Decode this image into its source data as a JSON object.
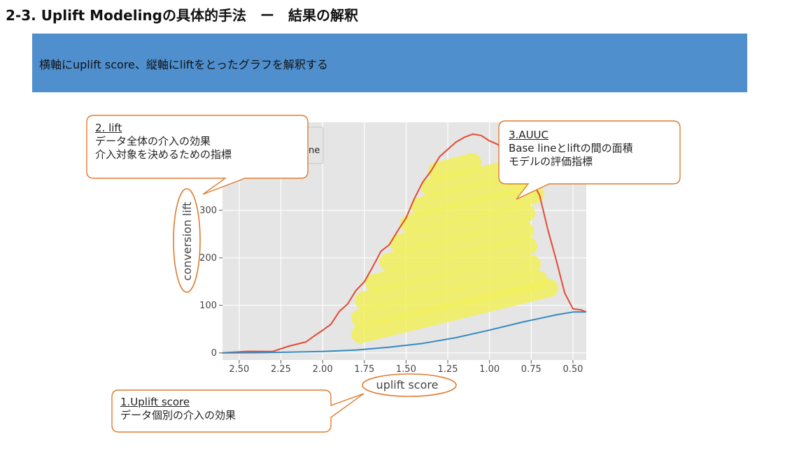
{
  "slide": {
    "title": "2-3. Uplift Modelingの具体的手法　ー　結果の解釈",
    "banner_text": "横軸にuplift score、縦軸にliftをとったグラフを解釈する",
    "banner_color": "#4f8fce"
  },
  "callouts": [
    {
      "id": "uplift-score",
      "head": "1.Uplift score",
      "lines": [
        "データ個別の介入の効果"
      ]
    },
    {
      "id": "lift",
      "head": "2. lift",
      "lines": [
        "データ全体の介入の効果",
        "介入対象を決めるための指標"
      ]
    },
    {
      "id": "auuc",
      "head": "3.AUUC",
      "lines": [
        "Base lineとliftの間の面積",
        "モデルの評価指標"
      ]
    }
  ],
  "legend_fragment": "ne",
  "chart_data": {
    "type": "line",
    "xlabel": "uplift score",
    "ylabel": "conversion lift",
    "xlim": [
      2.6,
      0.42
    ],
    "ylim": [
      -15,
      485
    ],
    "x_reversed": true,
    "grid": true,
    "background": "#e5e5e5",
    "xticks": [
      {
        "value": 2.5,
        "label": "2.50"
      },
      {
        "value": 2.25,
        "label": "2.25"
      },
      {
        "value": 2.0,
        "label": "2.00"
      },
      {
        "value": 1.75,
        "label": "1.75"
      },
      {
        "value": 1.5,
        "label": "1.50"
      },
      {
        "value": 1.25,
        "label": "1.25"
      },
      {
        "value": 1.0,
        "label": "1.00"
      },
      {
        "value": 0.75,
        "label": "0.75"
      },
      {
        "value": 0.5,
        "label": "0.50"
      }
    ],
    "yticks": [
      {
        "value": 0,
        "label": "0"
      },
      {
        "value": 100,
        "label": "100"
      },
      {
        "value": 200,
        "label": "200"
      },
      {
        "value": 300,
        "label": "300"
      }
    ],
    "series": [
      {
        "color": "#e24a33",
        "x": [
          2.6,
          2.45,
          2.3,
          2.2,
          2.1,
          2.05,
          2.0,
          1.95,
          1.9,
          1.85,
          1.8,
          1.75,
          1.7,
          1.65,
          1.6,
          1.55,
          1.5,
          1.45,
          1.4,
          1.35,
          1.3,
          1.25,
          1.2,
          1.15,
          1.1,
          1.05,
          1.0,
          0.95,
          0.9,
          0.85,
          0.8,
          0.75,
          0.7,
          0.65,
          0.6,
          0.55,
          0.5,
          0.45,
          0.42
        ],
        "y": [
          0,
          2,
          5,
          12,
          25,
          35,
          47,
          62,
          85,
          105,
          130,
          150,
          182,
          212,
          230,
          255,
          285,
          325,
          358,
          385,
          410,
          430,
          443,
          453,
          462,
          455,
          448,
          437,
          418,
          395,
          378,
          365,
          330,
          260,
          195,
          125,
          95,
          88,
          86
        ]
      },
      {
        "color": "#348abd",
        "x": [
          2.6,
          2.4,
          2.2,
          2.0,
          1.8,
          1.6,
          1.4,
          1.2,
          1.0,
          0.8,
          0.6,
          0.5,
          0.42
        ],
        "y": [
          0,
          0.5,
          1.5,
          3,
          6,
          12,
          20,
          32,
          48,
          65,
          80,
          86,
          86
        ]
      }
    ]
  }
}
